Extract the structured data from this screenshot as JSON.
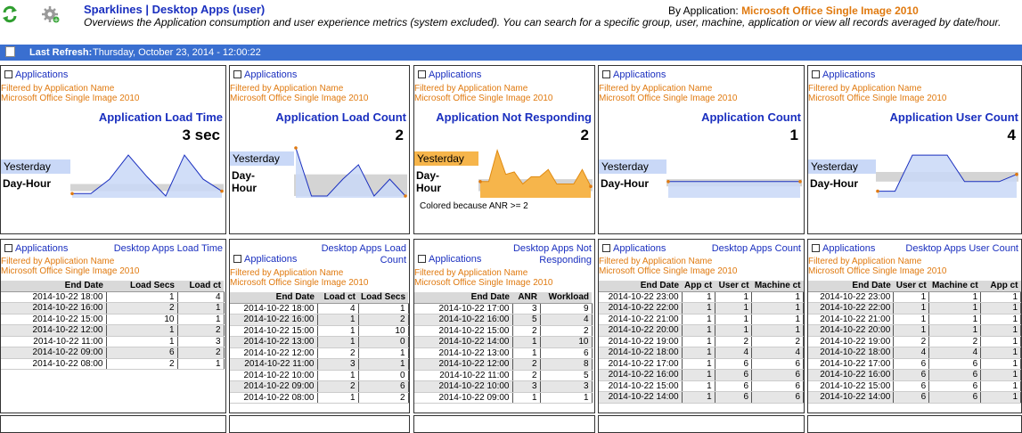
{
  "header": {
    "title": "Sparklines | Desktop Apps (user)",
    "description": "Overviews the Application consumption and user experience metrics (system excluded). You can search for a specific group, user, machine, application or view all records averaged by date/hour.",
    "by_application_label": "By Application:",
    "by_application_value": "Microsoft Office Single Image 2010"
  },
  "toolbar": {
    "icons": [
      "refresh-icon",
      "settings-gear-icon"
    ]
  },
  "refresh": {
    "label": "Last Refresh:",
    "value": "Thursday, October 23, 2014 - 12:00:22"
  },
  "common": {
    "applications_link": "Applications",
    "filter_line1": "Filtered by Application Name",
    "filter_line2": "Microsoft Office Single Image 2010",
    "yesterday": "Yesterday",
    "day": "Day-",
    "hour": "Hour",
    "day_hour": "Day-Hour"
  },
  "sparklines": [
    {
      "metric": "Application Load Time",
      "value": "3 sec",
      "points": [
        0.05,
        0.05,
        0.35,
        0.85,
        0.4,
        0.0,
        0.85,
        0.35,
        0.1
      ],
      "band": [
        0.1,
        0.25
      ],
      "highlight": false,
      "note": ""
    },
    {
      "metric": "Application Load Count",
      "value": "2",
      "points": [
        1.0,
        0.0,
        0.0,
        0.35,
        0.65,
        0.0,
        0.35,
        0.0
      ],
      "band": [
        0.0,
        0.45
      ],
      "highlight": false,
      "note": ""
    },
    {
      "metric": "Application Not Responding",
      "value": "2",
      "points": [
        0.3,
        0.3,
        0.95,
        0.45,
        0.5,
        0.25,
        0.4,
        0.4,
        0.55,
        0.25,
        0.25,
        0.25,
        0.55,
        0.2
      ],
      "band": [
        0.1,
        0.35
      ],
      "highlight": true,
      "note": "Colored because ANR >= 2"
    },
    {
      "metric": "Application Count",
      "value": "1",
      "points": [
        0.3,
        0.3,
        0.3,
        0.3,
        0.3
      ],
      "band": [
        0.2,
        0.35
      ],
      "highlight": false,
      "note": ""
    },
    {
      "metric": "Application User Count",
      "value": "4",
      "points": [
        0.1,
        0.1,
        0.85,
        0.85,
        0.85,
        0.3,
        0.3,
        0.3,
        0.45
      ],
      "band": [
        0.3,
        0.5
      ],
      "highlight": false,
      "note": ""
    }
  ],
  "tables": [
    {
      "title_lines": [
        "Desktop Apps Load Time"
      ],
      "title_style": "inline",
      "columns": [
        "End Date",
        "Load Secs",
        "Load ct"
      ],
      "rows": [
        [
          "2014-10-22 18:00",
          "1",
          "4"
        ],
        [
          "2014-10-22 16:00",
          "2",
          "1"
        ],
        [
          "2014-10-22 15:00",
          "10",
          "1"
        ],
        [
          "2014-10-22 12:00",
          "1",
          "2"
        ],
        [
          "2014-10-22 11:00",
          "1",
          "3"
        ],
        [
          "2014-10-22 09:00",
          "6",
          "2"
        ],
        [
          "2014-10-22 08:00",
          "2",
          "1"
        ]
      ]
    },
    {
      "title_lines": [
        "Desktop Apps Load",
        "Count"
      ],
      "title_style": "stacked",
      "columns": [
        "End Date",
        "Load ct",
        "Load Secs"
      ],
      "rows": [
        [
          "2014-10-22 18:00",
          "4",
          "1"
        ],
        [
          "2014-10-22 16:00",
          "1",
          "2"
        ],
        [
          "2014-10-22 15:00",
          "1",
          "10"
        ],
        [
          "2014-10-22 13:00",
          "1",
          "0"
        ],
        [
          "2014-10-22 12:00",
          "2",
          "1"
        ],
        [
          "2014-10-22 11:00",
          "3",
          "1"
        ],
        [
          "2014-10-22 10:00",
          "1",
          "0"
        ],
        [
          "2014-10-22 09:00",
          "2",
          "6"
        ],
        [
          "2014-10-22 08:00",
          "1",
          "2"
        ]
      ]
    },
    {
      "title_lines": [
        "Desktop Apps Not",
        "Responding"
      ],
      "title_style": "stacked",
      "columns": [
        "End Date",
        "ANR",
        "Workload"
      ],
      "rows": [
        [
          "2014-10-22 17:00",
          "3",
          "9"
        ],
        [
          "2014-10-22 16:00",
          "5",
          "4"
        ],
        [
          "2014-10-22 15:00",
          "2",
          "2"
        ],
        [
          "2014-10-22 14:00",
          "1",
          "10"
        ],
        [
          "2014-10-22 13:00",
          "1",
          "6"
        ],
        [
          "2014-10-22 12:00",
          "2",
          "8"
        ],
        [
          "2014-10-22 11:00",
          "2",
          "5"
        ],
        [
          "2014-10-22 10:00",
          "3",
          "3"
        ],
        [
          "2014-10-22 09:00",
          "1",
          "1"
        ]
      ]
    },
    {
      "title_lines": [
        "Desktop Apps Count"
      ],
      "title_style": "inline",
      "columns": [
        "End Date",
        "App ct",
        "User ct",
        "Machine ct"
      ],
      "rows": [
        [
          "2014-10-22 23:00",
          "1",
          "1",
          "1"
        ],
        [
          "2014-10-22 22:00",
          "1",
          "1",
          "1"
        ],
        [
          "2014-10-22 21:00",
          "1",
          "1",
          "1"
        ],
        [
          "2014-10-22 20:00",
          "1",
          "1",
          "1"
        ],
        [
          "2014-10-22 19:00",
          "1",
          "2",
          "2"
        ],
        [
          "2014-10-22 18:00",
          "1",
          "4",
          "4"
        ],
        [
          "2014-10-22 17:00",
          "1",
          "6",
          "6"
        ],
        [
          "2014-10-22 16:00",
          "1",
          "6",
          "6"
        ],
        [
          "2014-10-22 15:00",
          "1",
          "6",
          "6"
        ],
        [
          "2014-10-22 14:00",
          "1",
          "6",
          "6"
        ]
      ]
    },
    {
      "title_lines": [
        "Desktop Apps User Count"
      ],
      "title_style": "inline",
      "columns": [
        "End Date",
        "User ct",
        "Machine ct",
        "App ct"
      ],
      "rows": [
        [
          "2014-10-22 23:00",
          "1",
          "1",
          "1"
        ],
        [
          "2014-10-22 22:00",
          "1",
          "1",
          "1"
        ],
        [
          "2014-10-22 21:00",
          "1",
          "1",
          "1"
        ],
        [
          "2014-10-22 20:00",
          "1",
          "1",
          "1"
        ],
        [
          "2014-10-22 19:00",
          "2",
          "2",
          "1"
        ],
        [
          "2014-10-22 18:00",
          "4",
          "4",
          "1"
        ],
        [
          "2014-10-22 17:00",
          "6",
          "6",
          "1"
        ],
        [
          "2014-10-22 16:00",
          "6",
          "6",
          "1"
        ],
        [
          "2014-10-22 15:00",
          "6",
          "6",
          "1"
        ],
        [
          "2014-10-22 14:00",
          "6",
          "6",
          "1"
        ]
      ]
    }
  ],
  "colors": {
    "link": "#1a2fbf",
    "filter": "#e07a10",
    "spark_fill": "#c9d8f7",
    "spark_line": "#1a2fbf",
    "anr_fill": "#f6b54b",
    "band": "#d4d4d4",
    "refresh_bar": "#3a6fd0"
  }
}
